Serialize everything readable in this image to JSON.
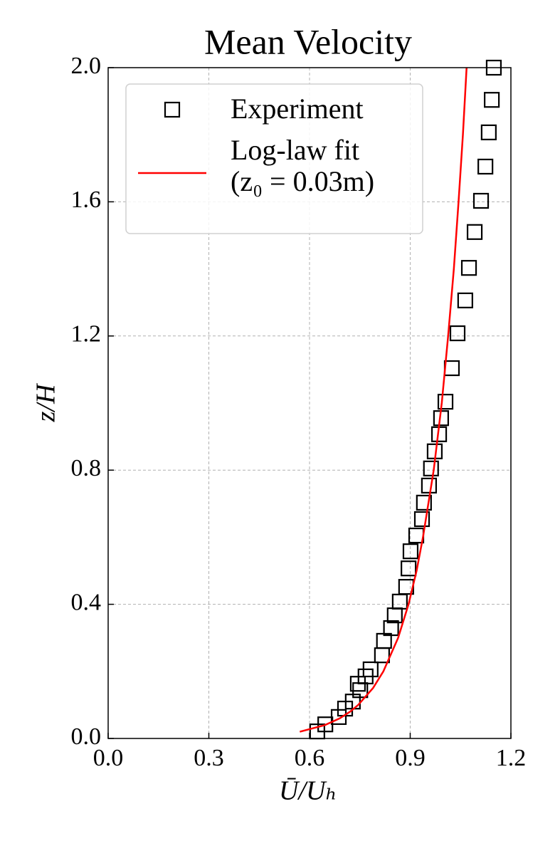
{
  "chart_data": {
    "type": "scatter+line",
    "title": "Mean Velocity",
    "xlabel": "Ū/Uₕ",
    "ylabel": "z/H",
    "xlim": [
      0,
      1.2
    ],
    "ylim": [
      0,
      2
    ],
    "xticks": [
      {
        "value": 0,
        "label": "0.0"
      },
      0.3,
      0.6,
      0.9,
      1.2
    ],
    "yticks": [
      {
        "value": 0,
        "label": "0.0"
      },
      0.4,
      0.8,
      1.2,
      1.6,
      {
        "value": 2,
        "label": "2.0"
      }
    ],
    "grid": true,
    "legend": "upper left",
    "series": [
      {
        "name": "Experiment",
        "type": "scatter",
        "color": "#000000",
        "x": [
          0.623,
          0.647,
          0.687,
          0.706,
          0.729,
          0.751,
          0.744,
          0.767,
          0.782,
          0.816,
          0.822,
          0.843,
          0.854,
          0.869,
          0.888,
          0.895,
          0.901,
          0.918,
          0.935,
          0.941,
          0.956,
          0.962,
          0.973,
          0.986,
          0.992,
          1.005,
          1.024,
          1.041,
          1.064,
          1.075,
          1.092,
          1.111,
          1.124,
          1.134,
          1.143,
          1.149
        ],
        "values": [
          0.021,
          0.042,
          0.064,
          0.089,
          0.11,
          0.144,
          0.163,
          0.185,
          0.206,
          0.248,
          0.291,
          0.329,
          0.367,
          0.408,
          0.452,
          0.507,
          0.558,
          0.605,
          0.654,
          0.703,
          0.754,
          0.805,
          0.856,
          0.907,
          0.955,
          1.004,
          1.104,
          1.208,
          1.306,
          1.403,
          1.51,
          1.603,
          1.705,
          1.807,
          1.904,
          2.0
        ]
      },
      {
        "name": "Log-law fit\n(z₀ = 0.03m)",
        "type": "line",
        "color": "#ff0000",
        "x": [
          0.571,
          0.646,
          0.69,
          0.721,
          0.745,
          0.789,
          0.82,
          0.864,
          0.895,
          0.919,
          0.938,
          0.97,
          0.994,
          1.013,
          1.03,
          1.044,
          1.057,
          1.068
        ],
        "values": [
          0.02,
          0.04,
          0.06,
          0.08,
          0.1,
          0.15,
          0.2,
          0.3,
          0.4,
          0.5,
          0.6,
          0.8,
          1.0,
          1.2,
          1.4,
          1.6,
          1.8,
          2.0
        ]
      }
    ]
  }
}
